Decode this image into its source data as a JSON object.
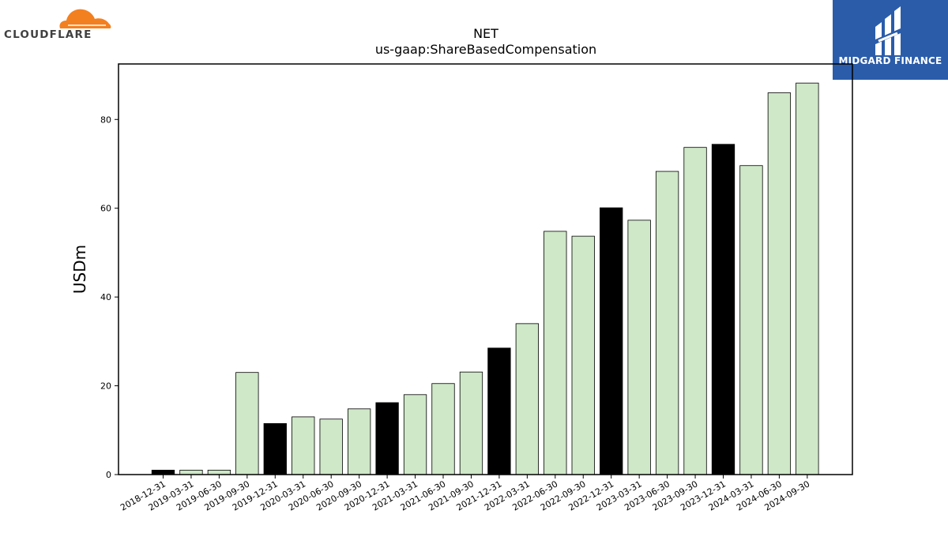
{
  "brands": {
    "left": {
      "name": "CLOUDFLARE",
      "cloud_color": "#f38020",
      "text_color": "#404041"
    },
    "right": {
      "name": "MIDGARD FINANCE",
      "bg_color": "#2a5caa"
    }
  },
  "chart_data": {
    "type": "bar",
    "title": "NET",
    "subtitle": "us-gaap:ShareBasedCompensation",
    "xlabel": "",
    "ylabel": "USDm",
    "ylim": [
      0,
      92.5
    ],
    "yticks": [
      0,
      20,
      40,
      60,
      80
    ],
    "grid": false,
    "categories": [
      "2018-12-31",
      "2019-03-31",
      "2019-06-30",
      "2019-09-30",
      "2019-12-31",
      "2020-03-31",
      "2020-06-30",
      "2020-09-30",
      "2020-12-31",
      "2021-03-31",
      "2021-06-30",
      "2021-09-30",
      "2021-12-31",
      "2022-03-31",
      "2022-06-30",
      "2022-09-30",
      "2022-12-31",
      "2023-03-31",
      "2023-06-30",
      "2023-09-30",
      "2023-12-31",
      "2024-03-31",
      "2024-06-30",
      "2024-09-30"
    ],
    "values": [
      1.0,
      1.0,
      1.0,
      23.0,
      11.5,
      13.0,
      12.5,
      14.8,
      16.2,
      18.0,
      20.5,
      23.1,
      28.5,
      34.0,
      54.8,
      53.7,
      60.1,
      57.3,
      68.3,
      73.7,
      74.4,
      69.6,
      86.0,
      88.2
    ],
    "bar_colors": [
      "#000000",
      "#cfe8c8",
      "#cfe8c8",
      "#cfe8c8",
      "#000000",
      "#cfe8c8",
      "#cfe8c8",
      "#cfe8c8",
      "#000000",
      "#cfe8c8",
      "#cfe8c8",
      "#cfe8c8",
      "#000000",
      "#cfe8c8",
      "#cfe8c8",
      "#cfe8c8",
      "#000000",
      "#cfe8c8",
      "#cfe8c8",
      "#cfe8c8",
      "#000000",
      "#cfe8c8",
      "#cfe8c8",
      "#cfe8c8"
    ]
  }
}
